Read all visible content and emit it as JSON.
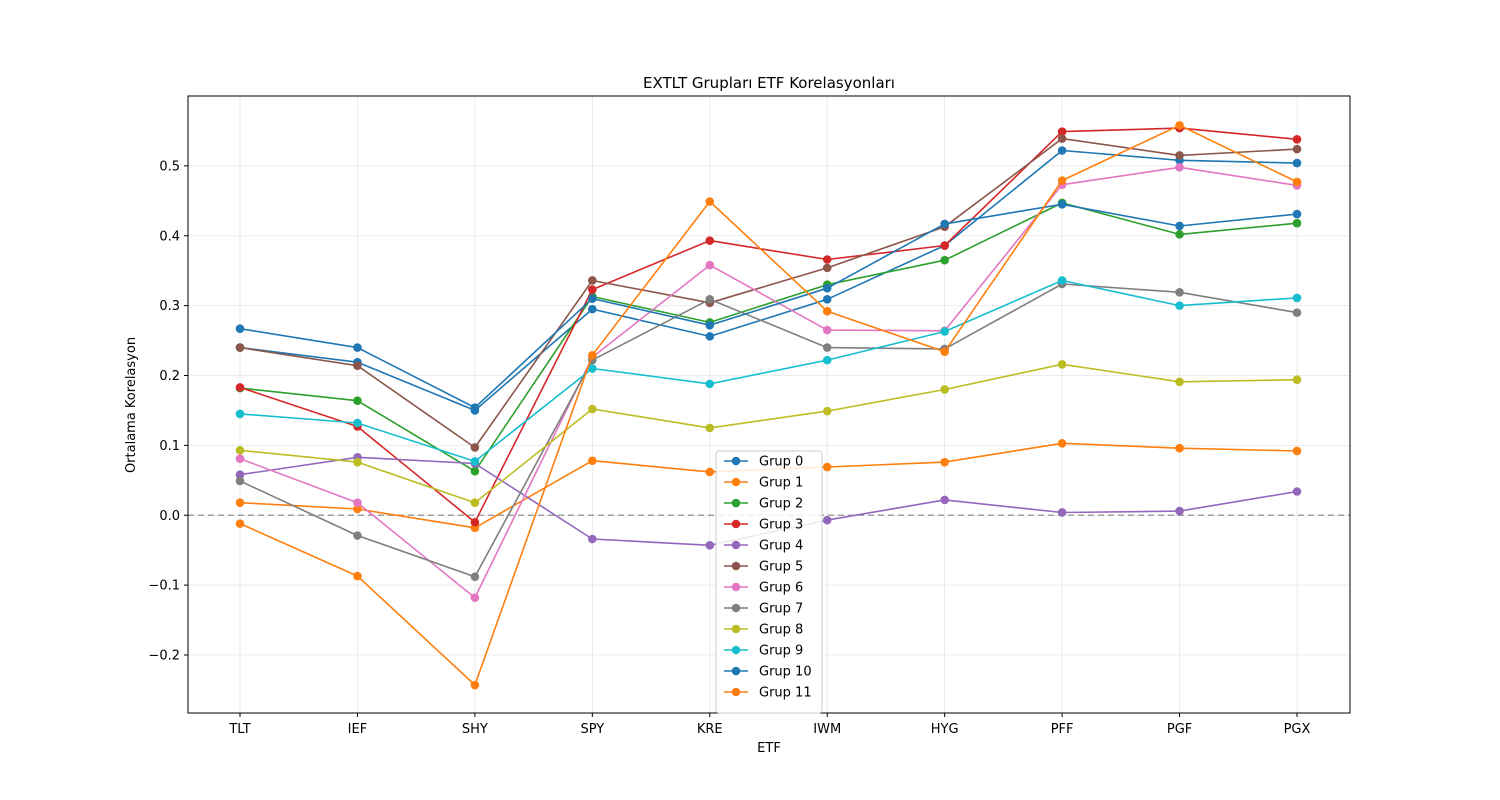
{
  "chart_data": {
    "type": "line",
    "title": "EXTLT Grupları ETF Korelasyonları",
    "xlabel": "ETF",
    "ylabel": "Ortalama Korelasyon",
    "categories": [
      "TLT",
      "IEF",
      "SHY",
      "SPY",
      "KRE",
      "IWM",
      "HYG",
      "PFF",
      "PGF",
      "PGX"
    ],
    "ylim": [
      -0.283,
      0.6
    ],
    "yticks": [
      -0.2,
      -0.1,
      0.0,
      0.1,
      0.2,
      0.3,
      0.4,
      0.5
    ],
    "ytick_labels": [
      "−0.2",
      "−0.1",
      "0.0",
      "0.1",
      "0.2",
      "0.3",
      "0.4",
      "0.5"
    ],
    "grid": true,
    "reference_line": {
      "y": 0.0,
      "style": "dashed",
      "color": "#a0a0a0"
    },
    "legend_position": "lower-center",
    "series": [
      {
        "name": "Grup 0",
        "color": "#1f77b4",
        "values": [
          0.24,
          0.219,
          0.15,
          0.295,
          0.256,
          0.309,
          0.386,
          0.522,
          0.508,
          0.504
        ]
      },
      {
        "name": "Grup 1",
        "color": "#ff7f0e",
        "values": [
          0.018,
          0.009,
          -0.018,
          0.078,
          0.062,
          0.069,
          0.076,
          0.103,
          0.096,
          0.092
        ]
      },
      {
        "name": "Grup 2",
        "color": "#2ca02c",
        "values": [
          0.182,
          0.164,
          0.063,
          0.313,
          0.276,
          0.33,
          0.365,
          0.447,
          0.402,
          0.418
        ]
      },
      {
        "name": "Grup 3",
        "color": "#d62728",
        "values": [
          0.183,
          0.127,
          -0.01,
          0.323,
          0.393,
          0.366,
          0.386,
          0.549,
          0.554,
          0.538
        ]
      },
      {
        "name": "Grup 4",
        "color": "#9467bd",
        "values": [
          0.058,
          0.083,
          0.074,
          -0.034,
          -0.043,
          -0.007,
          0.022,
          0.004,
          0.006,
          0.034
        ]
      },
      {
        "name": "Grup 5",
        "color": "#8c564b",
        "values": [
          0.24,
          0.214,
          0.097,
          0.336,
          0.304,
          0.354,
          0.413,
          0.539,
          0.515,
          0.524
        ]
      },
      {
        "name": "Grup 6",
        "color": "#e377c2",
        "values": [
          0.081,
          0.018,
          -0.118,
          0.226,
          0.358,
          0.265,
          0.264,
          0.473,
          0.498,
          0.472
        ]
      },
      {
        "name": "Grup 7",
        "color": "#7f7f7f",
        "values": [
          0.049,
          -0.029,
          -0.088,
          0.222,
          0.309,
          0.24,
          0.238,
          0.331,
          0.319,
          0.29
        ]
      },
      {
        "name": "Grup 8",
        "color": "#bcbd22",
        "values": [
          0.093,
          0.076,
          0.018,
          0.152,
          0.125,
          0.149,
          0.18,
          0.216,
          0.191,
          0.194
        ]
      },
      {
        "name": "Grup 9",
        "color": "#17becf",
        "values": [
          0.145,
          0.132,
          0.077,
          0.21,
          0.188,
          0.222,
          0.263,
          0.336,
          0.3,
          0.311
        ]
      },
      {
        "name": "Grup 10",
        "color": "#1f77b4",
        "values": [
          0.267,
          0.24,
          0.154,
          0.31,
          0.272,
          0.325,
          0.417,
          0.445,
          0.414,
          0.431
        ]
      },
      {
        "name": "Grup 11",
        "color": "#ff7f0e",
        "values": [
          -0.012,
          -0.087,
          -0.243,
          0.229,
          0.449,
          0.292,
          0.234,
          0.479,
          0.558,
          0.477
        ]
      }
    ]
  }
}
